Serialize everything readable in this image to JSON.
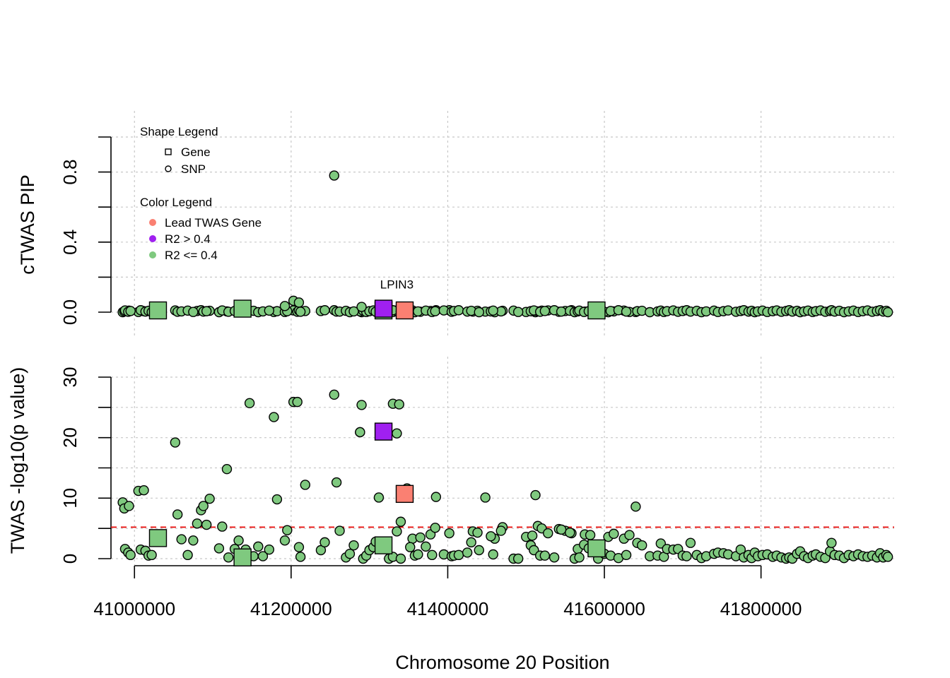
{
  "chart_data": [
    {
      "type": "scatter",
      "ylabel": "cTWAS PIP",
      "ylim": [
        0,
        1.0
      ],
      "yticks": [
        "0.0",
        "0.4",
        "0.8"
      ],
      "xlim": [
        40970000,
        41970000
      ],
      "grid": true,
      "legend_shape_title": "Shape Legend",
      "legend_shape_items": [
        {
          "shape": "square",
          "label": "Gene"
        },
        {
          "shape": "circle",
          "label": "SNP"
        }
      ],
      "legend_color_title": "Color Legend",
      "legend_color_items": [
        {
          "color": "#FA8072",
          "label": "Lead TWAS Gene"
        },
        {
          "color": "#A020F0",
          "label": "R2 > 0.4"
        },
        {
          "color": "#7FC97F",
          "label": "R2 <= 0.4"
        }
      ],
      "annotation": {
        "text": "LPIN3",
        "x": 41335000,
        "y": 0.095
      },
      "genes": [
        {
          "x": 41030000,
          "y": 0.01,
          "group": "low"
        },
        {
          "x": 41138000,
          "y": 0.02,
          "group": "low"
        },
        {
          "x": 41318000,
          "y": 0.01,
          "group": "low"
        },
        {
          "x": 41318000,
          "y": 0.02,
          "group": "high"
        },
        {
          "x": 41345000,
          "y": 0.01,
          "group": "lead"
        },
        {
          "x": 41590000,
          "y": 0.01,
          "group": "low"
        }
      ],
      "snp_highlight": [
        {
          "x": 41255000,
          "y": 0.78,
          "group": "low"
        }
      ]
    },
    {
      "type": "scatter",
      "ylabel": "TWAS -log10(p value)",
      "ylim": [
        0,
        30
      ],
      "yticks": [
        "0",
        "10",
        "20",
        "30"
      ],
      "xlabel": "Chromosome 20 Position",
      "xticks": [
        41000000,
        41200000,
        41400000,
        41600000,
        41800000
      ],
      "xtick_labels": [
        "41000000",
        "41200000",
        "41400000",
        "41600000",
        "41800000"
      ],
      "xlim": [
        40970000,
        41970000
      ],
      "grid": true,
      "threshold": {
        "y": 5.2,
        "color": "#E8110F"
      },
      "genes": [
        {
          "x": 41030000,
          "y": 3.4,
          "group": "low"
        },
        {
          "x": 41138000,
          "y": 0.2,
          "group": "low"
        },
        {
          "x": 41318000,
          "y": 2.2,
          "group": "low"
        },
        {
          "x": 41318000,
          "y": 21.0,
          "group": "high"
        },
        {
          "x": 41345000,
          "y": 10.7,
          "group": "lead"
        },
        {
          "x": 41590000,
          "y": 1.7,
          "group": "low"
        }
      ],
      "snps": [
        [
          40985000,
          9.3
        ],
        [
          40987000,
          8.3
        ],
        [
          40993000,
          8.7
        ],
        [
          41005000,
          11.2
        ],
        [
          41012000,
          11.3
        ],
        [
          41052000,
          19.2
        ],
        [
          41055000,
          7.3
        ],
        [
          41080000,
          5.8
        ],
        [
          41085000,
          8.0
        ],
        [
          41088000,
          8.7
        ],
        [
          41096000,
          9.9
        ],
        [
          41108000,
          1.7
        ],
        [
          41118000,
          14.8
        ],
        [
          41147000,
          25.7
        ],
        [
          41178000,
          23.4
        ],
        [
          41182000,
          9.8
        ],
        [
          41203000,
          25.9
        ],
        [
          41208000,
          25.9
        ],
        [
          41218000,
          12.2
        ],
        [
          41255000,
          27.1
        ],
        [
          41258000,
          12.6
        ],
        [
          41288000,
          20.9
        ],
        [
          41290000,
          25.4
        ],
        [
          41288000,
          20.9
        ],
        [
          41312000,
          10.1
        ],
        [
          41330000,
          25.6
        ],
        [
          41338000,
          25.5
        ],
        [
          41335000,
          20.7
        ],
        [
          41340000,
          6.1
        ],
        [
          41348000,
          11.6
        ],
        [
          41385000,
          10.2
        ],
        [
          41448000,
          10.1
        ],
        [
          41470000,
          5.2
        ],
        [
          41512000,
          10.5
        ],
        [
          41515000,
          5.4
        ],
        [
          41520000,
          5.0
        ],
        [
          41640000,
          8.6
        ],
        [
          41335000,
          4.5
        ],
        [
          41355000,
          3.3
        ],
        [
          41365000,
          3.5
        ],
        [
          41378000,
          4.0
        ],
        [
          41402000,
          4.2
        ],
        [
          41432000,
          4.5
        ],
        [
          41438000,
          4.3
        ],
        [
          41460000,
          3.3
        ],
        [
          41468000,
          4.6
        ],
        [
          41484000,
          0.0
        ],
        [
          41500000,
          3.6
        ],
        [
          41508000,
          3.8
        ],
        [
          41528000,
          4.2
        ],
        [
          41542000,
          4.9
        ],
        [
          41550000,
          4.6
        ],
        [
          41558000,
          4.2
        ],
        [
          41575000,
          4.0
        ],
        [
          41582000,
          3.9
        ],
        [
          41605000,
          3.6
        ],
        [
          41612000,
          4.1
        ],
        [
          41625000,
          3.3
        ],
        [
          41632000,
          3.9
        ],
        [
          41642000,
          2.6
        ],
        [
          40988000,
          1.6
        ],
        [
          40992000,
          1.0
        ],
        [
          40995000,
          0.6
        ],
        [
          41008000,
          1.5
        ],
        [
          41014000,
          1.3
        ],
        [
          41018000,
          0.5
        ],
        [
          41022000,
          0.6
        ],
        [
          41060000,
          3.2
        ],
        [
          41068000,
          0.6
        ],
        [
          41075000,
          3.0
        ],
        [
          41092000,
          5.6
        ],
        [
          41112000,
          5.3
        ],
        [
          41120000,
          0.2
        ],
        [
          41128000,
          1.6
        ],
        [
          41133000,
          3.0
        ],
        [
          41142000,
          1.5
        ],
        [
          41152000,
          0.4
        ],
        [
          41158000,
          2.0
        ],
        [
          41164000,
          0.4
        ],
        [
          41172000,
          1.5
        ],
        [
          41192000,
          3.0
        ],
        [
          41195000,
          4.7
        ],
        [
          41210000,
          1.9
        ],
        [
          41212000,
          0.3
        ],
        [
          41238000,
          1.4
        ],
        [
          41243000,
          2.7
        ],
        [
          41262000,
          4.6
        ],
        [
          41270000,
          0.2
        ],
        [
          41275000,
          0.8
        ],
        [
          41280000,
          2.2
        ],
        [
          41292000,
          0.0
        ],
        [
          41296000,
          0.5
        ],
        [
          41300000,
          1.4
        ],
        [
          41305000,
          1.9
        ],
        [
          41308000,
          2.8
        ],
        [
          41325000,
          0.0
        ],
        [
          41330000,
          0.3
        ],
        [
          41340000,
          0.0
        ],
        [
          41352000,
          1.9
        ],
        [
          41358000,
          0.5
        ],
        [
          41362000,
          0.7
        ],
        [
          41372000,
          2.0
        ],
        [
          41380000,
          0.6
        ],
        [
          41384000,
          5.1
        ],
        [
          41395000,
          0.7
        ],
        [
          41405000,
          0.4
        ],
        [
          41408000,
          0.5
        ],
        [
          41414000,
          0.6
        ],
        [
          41425000,
          1.0
        ],
        [
          41430000,
          2.7
        ],
        [
          41440000,
          1.4
        ],
        [
          41455000,
          3.7
        ],
        [
          41458000,
          0.7
        ],
        [
          41490000,
          0.0
        ],
        [
          41506000,
          2.2
        ],
        [
          41510000,
          1.4
        ],
        [
          41518000,
          0.5
        ],
        [
          41524000,
          0.5
        ],
        [
          41536000,
          0.2
        ],
        [
          41545000,
          4.8
        ],
        [
          41556000,
          4.3
        ],
        [
          41562000,
          0.0
        ],
        [
          41566000,
          1.6
        ],
        [
          41568000,
          0.2
        ],
        [
          41574000,
          2.3
        ],
        [
          41580000,
          1.7
        ],
        [
          41592000,
          0.0
        ],
        [
          41600000,
          0.8
        ],
        [
          41608000,
          0.5
        ],
        [
          41618000,
          0.1
        ],
        [
          41628000,
          0.6
        ],
        [
          41648000,
          2.2
        ],
        [
          41658000,
          0.4
        ],
        [
          41668000,
          0.5
        ],
        [
          41672000,
          2.5
        ],
        [
          41676000,
          0.3
        ],
        [
          41680000,
          1.6
        ],
        [
          41688000,
          1.5
        ],
        [
          41694000,
          1.6
        ],
        [
          41700000,
          0.5
        ],
        [
          41705000,
          0.4
        ],
        [
          41710000,
          2.6
        ],
        [
          41718000,
          0.6
        ],
        [
          41724000,
          0.1
        ],
        [
          41730000,
          0.4
        ],
        [
          41740000,
          0.8
        ],
        [
          41745000,
          1.0
        ],
        [
          41752000,
          0.9
        ],
        [
          41758000,
          0.7
        ],
        [
          41768000,
          0.4
        ],
        [
          41774000,
          1.5
        ],
        [
          41778000,
          0.2
        ],
        [
          41784000,
          0.6
        ],
        [
          41788000,
          0.1
        ],
        [
          41792000,
          1.0
        ],
        [
          41796000,
          0.4
        ],
        [
          41802000,
          0.6
        ],
        [
          41808000,
          0.7
        ],
        [
          41815000,
          0.3
        ],
        [
          41820000,
          0.5
        ],
        [
          41826000,
          0.2
        ],
        [
          41832000,
          0.0
        ],
        [
          41836000,
          0.2
        ],
        [
          41840000,
          0.0
        ],
        [
          41846000,
          0.8
        ],
        [
          41850000,
          1.2
        ],
        [
          41855000,
          0.4
        ],
        [
          41860000,
          0.1
        ],
        [
          41866000,
          0.5
        ],
        [
          41870000,
          0.7
        ],
        [
          41876000,
          0.3
        ],
        [
          41882000,
          0.1
        ],
        [
          41888000,
          1.2
        ],
        [
          41890000,
          2.6
        ],
        [
          41894000,
          0.6
        ],
        [
          41900000,
          0.5
        ],
        [
          41906000,
          0.1
        ],
        [
          41912000,
          0.6
        ],
        [
          41918000,
          0.4
        ],
        [
          41924000,
          0.7
        ],
        [
          41930000,
          0.4
        ],
        [
          41936000,
          0.3
        ],
        [
          41942000,
          0.5
        ],
        [
          41948000,
          0.2
        ],
        [
          41952000,
          0.9
        ],
        [
          41956000,
          0.2
        ],
        [
          41960000,
          0.6
        ],
        [
          41962000,
          0.3
        ]
      ]
    }
  ]
}
